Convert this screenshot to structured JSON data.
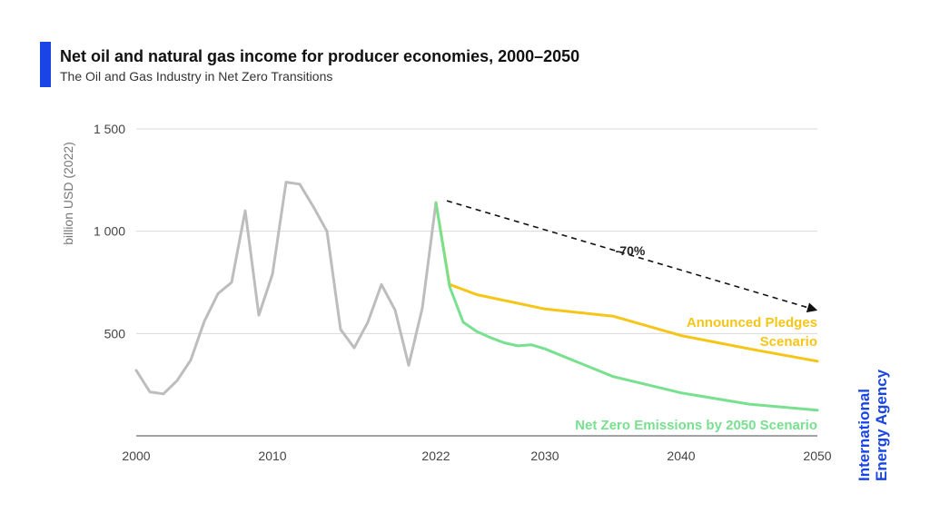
{
  "header": {
    "title": "Net oil and natural gas income for producer economies, 2000–2050",
    "subtitle": "The Oil and Gas Industry in Net Zero Transitions"
  },
  "brand": {
    "line1": "International",
    "line2": "Energy Agency",
    "color": "#1a45e6"
  },
  "chart_data": {
    "type": "line",
    "title": "Net oil and natural gas income for producer economies, 2000–2050",
    "subtitle": "The Oil and Gas Industry in Net Zero Transitions",
    "ylabel": "billion USD (2022)",
    "xlim": [
      2000,
      2050
    ],
    "ylim": [
      0,
      1500
    ],
    "x_ticks": [
      {
        "value": 2000,
        "label": "2000"
      },
      {
        "value": 2010,
        "label": "2010"
      },
      {
        "value": 2022,
        "label": "2022"
      },
      {
        "value": 2030,
        "label": "2030"
      },
      {
        "value": 2040,
        "label": "2040"
      },
      {
        "value": 2050,
        "label": "2050"
      }
    ],
    "y_ticks": [
      {
        "value": 500,
        "label": "500"
      },
      {
        "value": 1000,
        "label": "1 000"
      },
      {
        "value": 1500,
        "label": "1 500"
      }
    ],
    "grid": "horizontal",
    "series": [
      {
        "name": "",
        "color": "#bdbdbd",
        "points": [
          [
            2000,
            320
          ],
          [
            2001,
            215
          ],
          [
            2002,
            205
          ],
          [
            2003,
            270
          ],
          [
            2004,
            370
          ],
          [
            2005,
            560
          ],
          [
            2006,
            695
          ],
          [
            2007,
            750
          ],
          [
            2008,
            1100
          ],
          [
            2009,
            590
          ],
          [
            2010,
            790
          ],
          [
            2011,
            1240
          ],
          [
            2012,
            1230
          ],
          [
            2013,
            1120
          ],
          [
            2014,
            1000
          ],
          [
            2015,
            520
          ],
          [
            2016,
            430
          ],
          [
            2017,
            555
          ],
          [
            2018,
            740
          ],
          [
            2019,
            615
          ],
          [
            2020,
            345
          ],
          [
            2021,
            625
          ],
          [
            2022,
            1140
          ]
        ]
      },
      {
        "name": "Announced Pledges Scenario",
        "label_lines": [
          "Announced Pledges",
          "Scenario"
        ],
        "color": "#f5c518",
        "points": [
          [
            2022,
            1140
          ],
          [
            2023,
            740
          ],
          [
            2025,
            690
          ],
          [
            2030,
            620
          ],
          [
            2035,
            585
          ],
          [
            2040,
            490
          ],
          [
            2045,
            425
          ],
          [
            2050,
            365
          ]
        ]
      },
      {
        "name": "Net Zero Emissions by 2050 Scenario",
        "label_lines": [
          "Net Zero Emissions by 2050 Scenario"
        ],
        "color": "#78e08f",
        "points": [
          [
            2022,
            1140
          ],
          [
            2023,
            730
          ],
          [
            2024,
            555
          ],
          [
            2025,
            510
          ],
          [
            2026,
            480
          ],
          [
            2027,
            455
          ],
          [
            2028,
            440
          ],
          [
            2029,
            445
          ],
          [
            2030,
            425
          ],
          [
            2035,
            290
          ],
          [
            2040,
            210
          ],
          [
            2045,
            155
          ],
          [
            2050,
            125
          ]
        ]
      }
    ],
    "annotations": [
      {
        "text": "-70%",
        "arrow_from": [
          2022,
          1140
        ],
        "arrow_to": [
          2050,
          660
        ],
        "style": "dashed"
      }
    ]
  }
}
